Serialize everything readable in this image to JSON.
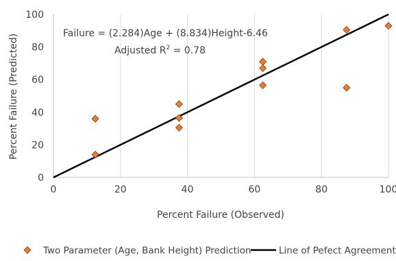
{
  "chart_data": {
    "type": "scatter",
    "title": "",
    "xlabel": "Percent Failure (Observed)",
    "ylabel": "Percent Failure (Predicted)",
    "xlim": [
      0,
      100
    ],
    "ylim": [
      0,
      100
    ],
    "xticks": [
      "0",
      "20",
      "40",
      "60",
      "80",
      "100"
    ],
    "yticks": [
      "0",
      "20",
      "40",
      "60",
      "80",
      "100"
    ],
    "grid": "vertical gridlines only",
    "legend_placement": "bottom",
    "series": [
      {
        "name": "Two Parameter (Age, Bank Height) Prediction",
        "kind": "points",
        "marker": "diamond",
        "color": "#ED7D31",
        "points": [
          {
            "x": 12.5,
            "y": 14
          },
          {
            "x": 12.5,
            "y": 36
          },
          {
            "x": 37.5,
            "y": 30.5
          },
          {
            "x": 37.5,
            "y": 36.5
          },
          {
            "x": 37.5,
            "y": 45
          },
          {
            "x": 62.5,
            "y": 56.5
          },
          {
            "x": 62.5,
            "y": 67
          },
          {
            "x": 62.5,
            "y": 71
          },
          {
            "x": 87.5,
            "y": 55
          },
          {
            "x": 87.5,
            "y": 90.5
          },
          {
            "x": 100,
            "y": 93
          }
        ]
      },
      {
        "name": "Line of Pefect Agreement",
        "kind": "line",
        "color": "#000000",
        "points": [
          {
            "x": 0,
            "y": 0
          },
          {
            "x": 100,
            "y": 100
          }
        ]
      }
    ],
    "annotation": {
      "equation": "Failure = (2.284)Age + (8.834)Height-6.46",
      "r2_prefix": "Adjusted R",
      "r2_sup": "2",
      "r2_suffix": " = 0.78"
    }
  }
}
